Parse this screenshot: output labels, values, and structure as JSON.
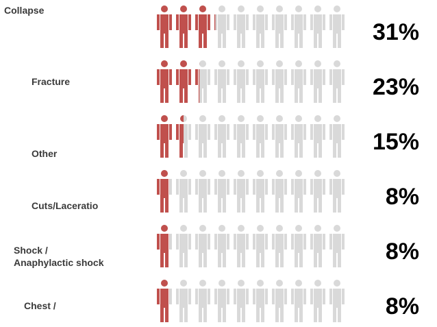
{
  "chart_data": {
    "type": "pictograph",
    "icons_per_row": 10,
    "colors": {
      "filled": "#c0504d",
      "empty": "#d9d9d9",
      "label": "#3a3a3a",
      "value": "#000000"
    },
    "rows": [
      {
        "category": "Collapse",
        "value": 31,
        "display": "31%"
      },
      {
        "category": "Fracture",
        "value": 23,
        "display": "23%"
      },
      {
        "category": "Other",
        "value": 15,
        "display": "15%"
      },
      {
        "category": "Cuts/Laceratio",
        "value": 8,
        "display": "8%"
      },
      {
        "category": "Shock /\nAnaphylactic shock",
        "value": 8,
        "display": "8%"
      },
      {
        "category": "Chest /",
        "value": 8,
        "display": "8%"
      }
    ]
  }
}
